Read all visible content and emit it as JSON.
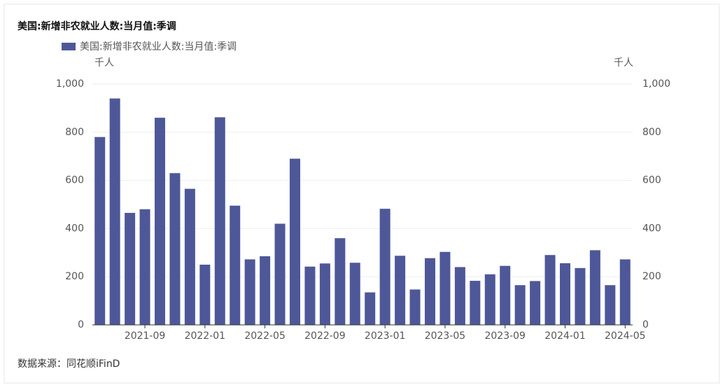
{
  "chart_data": {
    "type": "bar",
    "title": "美国:新增非农就业人数:当月值:季调",
    "y_label": "千人",
    "y2_label": "千人",
    "source": "数据来源：同花顺iFinD",
    "categories": [
      null,
      null,
      null,
      "2021-09",
      null,
      null,
      null,
      "2022-01",
      null,
      null,
      null,
      "2022-05",
      null,
      null,
      null,
      "2022-09",
      null,
      null,
      null,
      "2023-01",
      null,
      null,
      null,
      "2023-05",
      null,
      null,
      null,
      "2023-09",
      null,
      null,
      null,
      "2024-01",
      null,
      null,
      null,
      "2024-05"
    ],
    "series": [
      {
        "name": "美国:新增非农就业人数:当月值:季调",
        "color": "#4e5898",
        "values": [
          780,
          940,
          465,
          480,
          860,
          630,
          565,
          250,
          862,
          495,
          272,
          285,
          420,
          690,
          242,
          255,
          360,
          258,
          135,
          482,
          287,
          147,
          277,
          303,
          240,
          183,
          210,
          245,
          165,
          182,
          290,
          256,
          236,
          310,
          165,
          272
        ]
      }
    ],
    "ylim": [
      0,
      1000
    ],
    "yticks": [
      0,
      200,
      400,
      600,
      800,
      {
        "value": 1000,
        "label": "1,000"
      }
    ],
    "y2lim": [
      0,
      1000
    ],
    "y2ticks": [
      0,
      200,
      400,
      600,
      800,
      {
        "value": 1000,
        "label": "1,000"
      }
    ],
    "grid": true
  }
}
